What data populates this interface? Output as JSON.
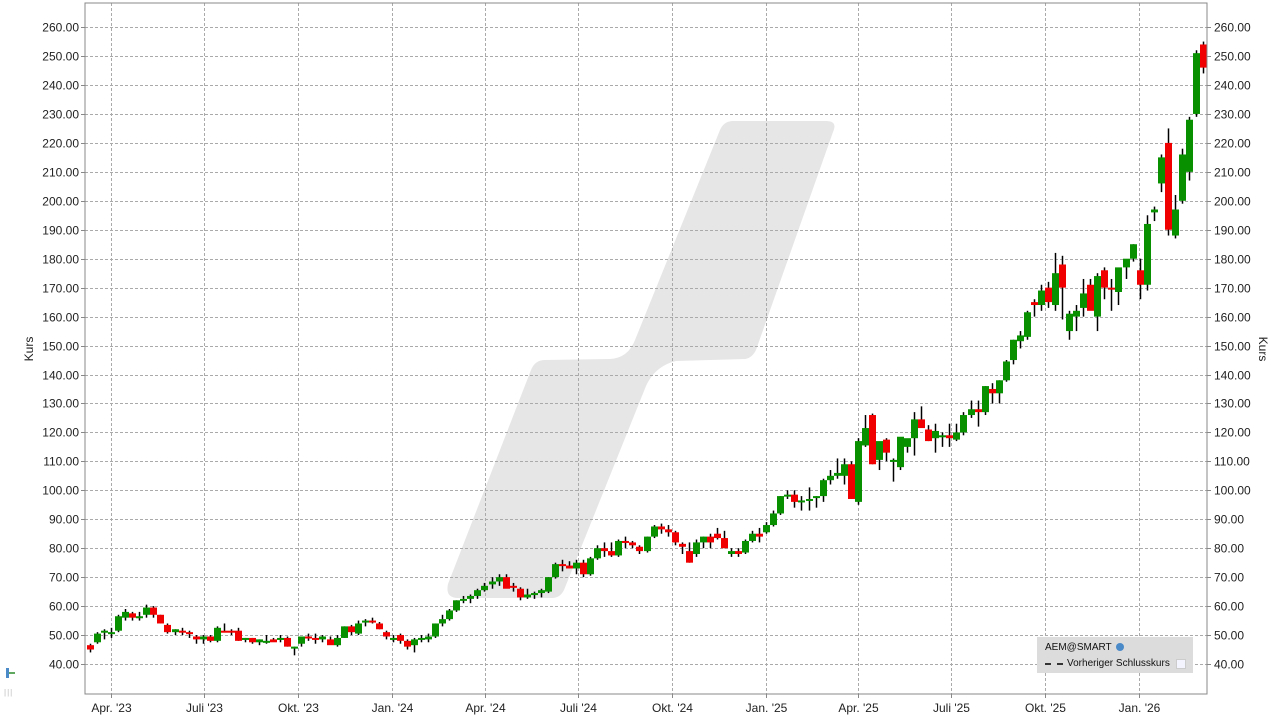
{
  "chart_data": {
    "type": "candlestick",
    "title": "",
    "ylabel": "Kurs",
    "ylabel_right": "Kurs",
    "ylim": [
      30,
      268
    ],
    "y_ticks": [
      "260.00",
      "250.00",
      "240.00",
      "230.00",
      "220.00",
      "210.00",
      "200.00",
      "190.00",
      "180.00",
      "170.00",
      "160.00",
      "150.00",
      "140.00",
      "130.00",
      "120.00",
      "110.00",
      "100.00",
      "90.00",
      "80.00",
      "70.00",
      "60.00",
      "50.00",
      "40.00"
    ],
    "x_ticks": [
      "Apr. '23",
      "Juli '23",
      "Okt. '23",
      "Jan. '24",
      "Apr. '24",
      "Juli '24",
      "Okt. '24",
      "Jan. '25",
      "Apr. '25",
      "Juli '25",
      "Okt. '25",
      "Jan. '26"
    ],
    "grid": true,
    "interval": "weekly",
    "colors": {
      "up": "#089000",
      "down": "#f00000",
      "grid": "#aaaaaa",
      "watermark": "#e6e6e6"
    },
    "legend": {
      "position": "bottom-right",
      "entries": [
        "AEM@SMART",
        "Vorheriger Schlusskurs"
      ]
    },
    "candles": [
      [
        46.5,
        47,
        44,
        45
      ],
      [
        47.5,
        51,
        47,
        50.5
      ],
      [
        51,
        52,
        48.5,
        51.5
      ],
      [
        50.5,
        52.5,
        49,
        51
      ],
      [
        51.5,
        57,
        51,
        56.5
      ],
      [
        56,
        59,
        55,
        58
      ],
      [
        57.5,
        58,
        55,
        56
      ],
      [
        56.5,
        58,
        55,
        56.5
      ],
      [
        57,
        60.5,
        56,
        59.5
      ],
      [
        59.5,
        60,
        56,
        57
      ],
      [
        57,
        57,
        54,
        54
      ],
      [
        53.5,
        54,
        50.5,
        51
      ],
      [
        51,
        52,
        50,
        52
      ],
      [
        51.5,
        52.5,
        50,
        51
      ],
      [
        51,
        51.5,
        49,
        50.5
      ],
      [
        49.5,
        50,
        47,
        48.5
      ],
      [
        48.5,
        50,
        47,
        49.5
      ],
      [
        49.5,
        50,
        47.5,
        48
      ],
      [
        48,
        53,
        47.5,
        52.5
      ],
      [
        51.5,
        54,
        51,
        51
      ],
      [
        51.5,
        52,
        50,
        51
      ],
      [
        51.5,
        52.5,
        48,
        48
      ],
      [
        48.5,
        49,
        47.5,
        49
      ],
      [
        49,
        49,
        47,
        47.5
      ],
      [
        47.5,
        48.5,
        46.5,
        48.5
      ],
      [
        48,
        50,
        47,
        48
      ],
      [
        48.5,
        49,
        48,
        47.5
      ],
      [
        49,
        50,
        47.5,
        49
      ],
      [
        49,
        49.5,
        46,
        46
      ],
      [
        45.5,
        46,
        43,
        46
      ],
      [
        47,
        49,
        46,
        49.5
      ],
      [
        49.5,
        50.5,
        48,
        49
      ],
      [
        49,
        50.5,
        47,
        48.5
      ],
      [
        48.5,
        50,
        47.5,
        49.5
      ],
      [
        48.5,
        49.5,
        47,
        46.5
      ],
      [
        46.5,
        50,
        46,
        49
      ],
      [
        49,
        53,
        49,
        53
      ],
      [
        53,
        53.5,
        50,
        51
      ],
      [
        50.5,
        55,
        50,
        54
      ],
      [
        54.5,
        55.5,
        53,
        55
      ],
      [
        55,
        56,
        54,
        54.5
      ],
      [
        54,
        54.5,
        52,
        52
      ],
      [
        51,
        51.5,
        48.5,
        49.5
      ],
      [
        49,
        50,
        47.5,
        49
      ],
      [
        50,
        50.5,
        47,
        48
      ],
      [
        48,
        48.5,
        45,
        46
      ],
      [
        46.5,
        49,
        44,
        48.5
      ],
      [
        48.5,
        50,
        47.5,
        49
      ],
      [
        48.5,
        50.5,
        47.5,
        49.5
      ],
      [
        49.5,
        54,
        49,
        54
      ],
      [
        54,
        57,
        53,
        55.5
      ],
      [
        55.5,
        59,
        55,
        58.5
      ],
      [
        58.5,
        62,
        58,
        62
      ],
      [
        62,
        63.5,
        61,
        62.5
      ],
      [
        62.5,
        64,
        61,
        63.5
      ],
      [
        63.5,
        66,
        62.5,
        65.5
      ],
      [
        65.5,
        68,
        65,
        67
      ],
      [
        67.5,
        70,
        66,
        68.5
      ],
      [
        68.5,
        71,
        67,
        70
      ],
      [
        70,
        71,
        67,
        66
      ],
      [
        67,
        68,
        65,
        66.5
      ],
      [
        66,
        66.5,
        62,
        63
      ],
      [
        63,
        66,
        62.5,
        64
      ],
      [
        64,
        65,
        62.5,
        64.5
      ],
      [
        64.5,
        66,
        63,
        65.5
      ],
      [
        65,
        70,
        64.5,
        70
      ],
      [
        70,
        75,
        69.5,
        74.5
      ],
      [
        74.5,
        76,
        72,
        74
      ],
      [
        74,
        75.5,
        73,
        73
      ],
      [
        73,
        76,
        71,
        75
      ],
      [
        75,
        76,
        70,
        71
      ],
      [
        71,
        77,
        70.5,
        76.5
      ],
      [
        76.5,
        81,
        76,
        80
      ],
      [
        80,
        82,
        77,
        79
      ],
      [
        79,
        82,
        77,
        77.5
      ],
      [
        77.5,
        83,
        77,
        82.5
      ],
      [
        82.5,
        84,
        80,
        82
      ],
      [
        82,
        82.5,
        80,
        81
      ],
      [
        80.5,
        81,
        78,
        79
      ],
      [
        79,
        84,
        78.5,
        84
      ],
      [
        84,
        88,
        83.5,
        87.5
      ],
      [
        87.5,
        88.5,
        85,
        86.5
      ],
      [
        86.5,
        88,
        84,
        85.5
      ],
      [
        85.5,
        86,
        81,
        82
      ],
      [
        81.5,
        82,
        78,
        80.5
      ],
      [
        79,
        82,
        75,
        75
      ],
      [
        78,
        83,
        77,
        82
      ],
      [
        82,
        84,
        80,
        84
      ],
      [
        84,
        85,
        80,
        82
      ],
      [
        85,
        87,
        83,
        83.5
      ],
      [
        83.5,
        86,
        80,
        80
      ],
      [
        78,
        80,
        77,
        79
      ],
      [
        79,
        80,
        77,
        78
      ],
      [
        78.5,
        83,
        78,
        82.5
      ],
      [
        82.5,
        86,
        82,
        85
      ],
      [
        85,
        87,
        82,
        84
      ],
      [
        85.5,
        89,
        85,
        88
      ],
      [
        88,
        93,
        87.5,
        92
      ],
      [
        92,
        98,
        91.5,
        98
      ],
      [
        98,
        100,
        97,
        98.5
      ],
      [
        98.5,
        100,
        94,
        96
      ],
      [
        96,
        98,
        93,
        96.5
      ],
      [
        96.5,
        101,
        93,
        97
      ],
      [
        97.5,
        98,
        94,
        98
      ],
      [
        98,
        104,
        96,
        103.5
      ],
      [
        103.5,
        107,
        102,
        105
      ],
      [
        105,
        111,
        104,
        106
      ],
      [
        105,
        111,
        102,
        109
      ],
      [
        109,
        110,
        97,
        97
      ],
      [
        96,
        118,
        95,
        117
      ],
      [
        115.5,
        126,
        115,
        121.5
      ],
      [
        126,
        126.5,
        109,
        109
      ],
      [
        110.5,
        113,
        107,
        117
      ],
      [
        117.5,
        118,
        110,
        113
      ],
      [
        110,
        111,
        103,
        110.5
      ],
      [
        108,
        118,
        107,
        118.5
      ],
      [
        115,
        117,
        113,
        118
      ],
      [
        118,
        127,
        112,
        124.5
      ],
      [
        124.5,
        129,
        124,
        121.5
      ],
      [
        121,
        122.5,
        117,
        117
      ],
      [
        118,
        123,
        113,
        120.5
      ],
      [
        118.5,
        120,
        115,
        119
      ],
      [
        119,
        123,
        115,
        118
      ],
      [
        117.5,
        123,
        117,
        120
      ],
      [
        120,
        127,
        119,
        126
      ],
      [
        126,
        131,
        125,
        128
      ],
      [
        128,
        131,
        122,
        127
      ],
      [
        127,
        136,
        126,
        136
      ],
      [
        135,
        137,
        130,
        133.5
      ],
      [
        133.5,
        138,
        130,
        138
      ],
      [
        138,
        145,
        137.5,
        144.5
      ],
      [
        145,
        152,
        143.5,
        152
      ],
      [
        151.5,
        155,
        149,
        153.5
      ],
      [
        153,
        162,
        152,
        161.5
      ],
      [
        165,
        166,
        160,
        164
      ],
      [
        164,
        171,
        162,
        169
      ],
      [
        170,
        172,
        163,
        165
      ],
      [
        164,
        182,
        162,
        175
      ],
      [
        178,
        181,
        159,
        170
      ],
      [
        155,
        162,
        152,
        161
      ],
      [
        160,
        164,
        155,
        162
      ],
      [
        163,
        173,
        160,
        168
      ],
      [
        171,
        173,
        163,
        162
      ],
      [
        160,
        175,
        155,
        174
      ],
      [
        176,
        177,
        166,
        170
      ],
      [
        170,
        173,
        162,
        169.5
      ],
      [
        168.5,
        176,
        164,
        177
      ],
      [
        177,
        178,
        173,
        180
      ],
      [
        180,
        185,
        179,
        185
      ],
      [
        176,
        180,
        166,
        171
      ],
      [
        171,
        195,
        169,
        192
      ],
      [
        196,
        198,
        193,
        197
      ],
      [
        206,
        216,
        203,
        215
      ],
      [
        220,
        225,
        188,
        190
      ],
      [
        188,
        202,
        187,
        197
      ],
      [
        200,
        218,
        199,
        216
      ],
      [
        210,
        229,
        207,
        228
      ],
      [
        230,
        252,
        229,
        251
      ],
      [
        254,
        255,
        244,
        246
      ]
    ]
  },
  "legend": {
    "symbol": "AEM@SMART",
    "previous_close_label": "Vorheriger Schlusskurs"
  },
  "axes": {
    "left_label": "Kurs",
    "right_label": "Kurs"
  }
}
